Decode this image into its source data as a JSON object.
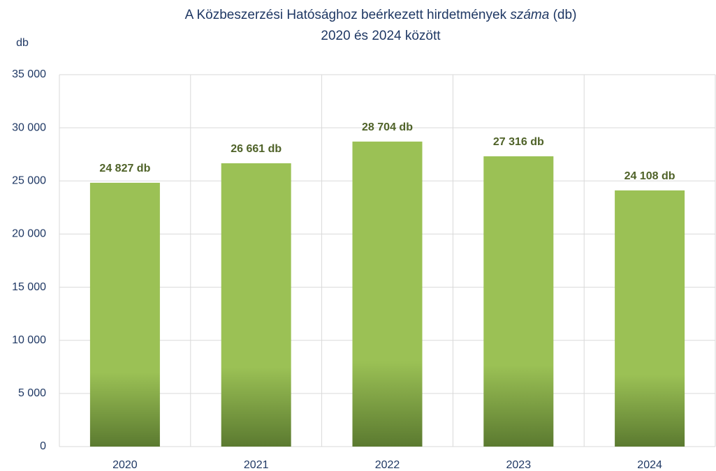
{
  "chart_data": {
    "type": "bar",
    "title": {
      "line1": [
        "A Közbeszerzési Hatósághoz beérkezett hirdetmények",
        "száma",
        "(db)"
      ],
      "line2": "2020 és 2024 között"
    },
    "y_label": "db",
    "categories": [
      "2020",
      "2021",
      "2022",
      "2023",
      "2024"
    ],
    "values": [
      24827,
      26661,
      28704,
      27316,
      24108
    ],
    "value_labels": [
      "24 827 db",
      "26 661 db",
      "28 704 db",
      "27 316 db",
      "24 108 db"
    ],
    "color": "#9bc155",
    "ylim": [
      0,
      35000
    ],
    "yticks": [
      0,
      {
        "value": 5000,
        "label": "5 000"
      },
      {
        "value": 10000,
        "label": "10 000"
      },
      {
        "value": 15000,
        "label": "15 000"
      },
      {
        "value": 20000,
        "label": "20 000"
      },
      {
        "value": 25000,
        "label": "25 000"
      },
      {
        "value": 30000,
        "label": "30 000"
      },
      {
        "value": 35000,
        "label": "35 000"
      }
    ],
    "grid": true
  }
}
